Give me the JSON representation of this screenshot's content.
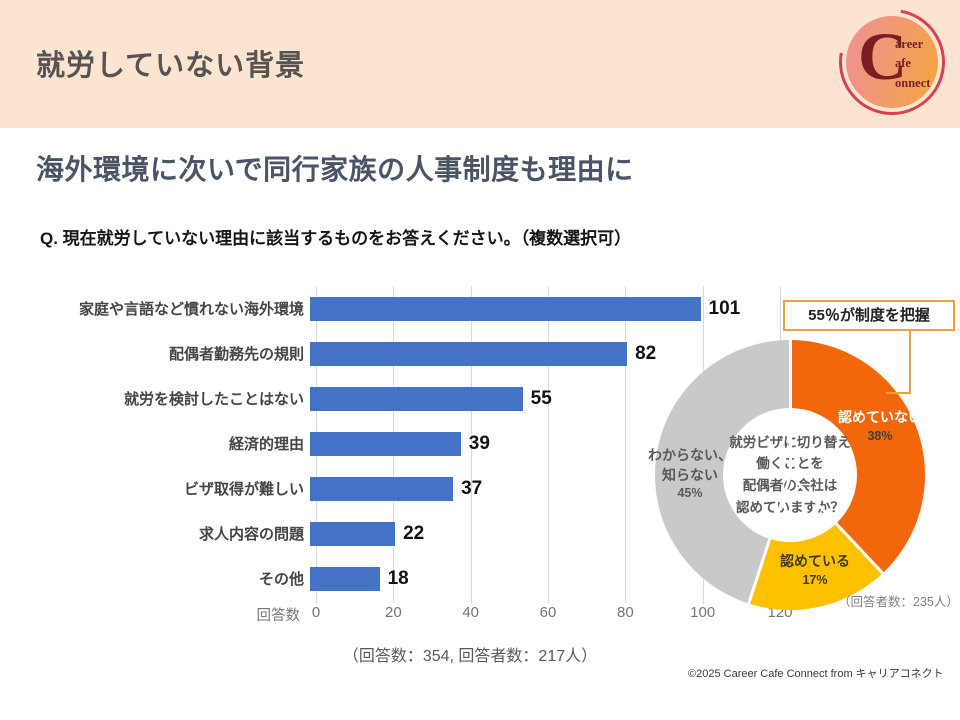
{
  "header": {
    "title": "就労していない背景",
    "logo": {
      "letter": "C",
      "words": [
        "areer",
        "afe",
        "onnect"
      ]
    }
  },
  "headline": "海外環境に次いで同行家族の人事制度も理由に",
  "question": "Q. 現在就労していない理由に該当するものをお答えください。（複数選択可）",
  "colors": {
    "header_bg": "#FBE5D1",
    "bar_blue": "#4472C4",
    "donut_orange": "#F2670C",
    "donut_yellow": "#FFC000",
    "donut_gray": "#C9C9C9",
    "callout_border": "#E8A33D"
  },
  "chart_data": [
    {
      "type": "bar",
      "orientation": "horizontal",
      "categories": [
        "家庭や言語など慣れない海外環境",
        "配偶者勤務先の規則",
        "就労を検討したことはない",
        "経済的理由",
        "ビザ取得が難しい",
        "求人内容の問題",
        "その他"
      ],
      "values": [
        101,
        82,
        55,
        39,
        37,
        22,
        18
      ],
      "xlabel": "回答数",
      "xlim": [
        0,
        120
      ],
      "xticks": [
        0,
        20,
        40,
        60,
        80,
        100,
        120
      ],
      "bar_color": "#4472C4",
      "grid": true,
      "footnote": "（回答数：354, 回答者数：217人）"
    },
    {
      "type": "pie",
      "subtype": "donut",
      "center_text": [
        "就労ビザに切り替え",
        "働くことを",
        "配偶者の会社は",
        "認めていますか？"
      ],
      "slices": [
        {
          "label": "認めていない",
          "value": 38,
          "pct_label": "38%",
          "color": "#F2670C",
          "label_color": "#FFFFFF"
        },
        {
          "label": "認めている",
          "value": 17,
          "pct_label": "17%",
          "color": "#FFC000",
          "label_color": "#3F3A1E"
        },
        {
          "label": "わからない、知らない",
          "label_lines": [
            "わからない、",
            "知らない"
          ],
          "value": 45,
          "pct_label": "45%",
          "color": "#C9C9C9",
          "label_color": "#595959"
        }
      ],
      "note": "（回答者数：235人）",
      "callout": "55％が制度を把握"
    }
  ],
  "footer": {
    "copyright": "©2025 Career Cafe Connect from キャリアコネクト"
  }
}
